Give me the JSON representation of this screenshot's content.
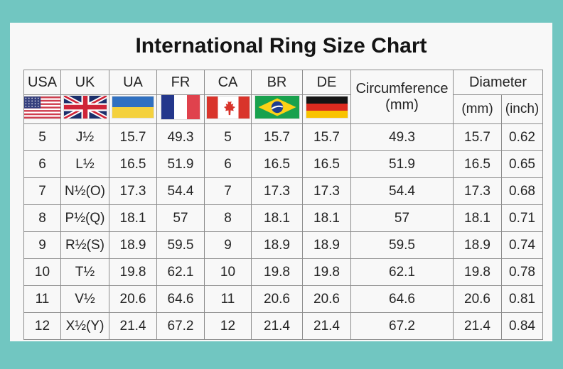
{
  "colors": {
    "background": "#71c6c1",
    "panel": "#f8f8f8",
    "grid": "#8c8c8c",
    "text": "#222222"
  },
  "header": {
    "countries": [
      "USA",
      "UK",
      "UA",
      "FR",
      "CA",
      "BR",
      "DE"
    ],
    "circumference_line1": "Circumference",
    "circumference_line2": "(mm)",
    "diameter": "Diameter",
    "diameter_mm": "(mm)",
    "diameter_inch": "(inch)"
  },
  "flags": [
    {
      "icon": "usa-flag-icon",
      "country": "USA"
    },
    {
      "icon": "uk-flag-icon",
      "country": "UK"
    },
    {
      "icon": "ukraine-flag-icon",
      "country": "UA"
    },
    {
      "icon": "france-flag-icon",
      "country": "FR"
    },
    {
      "icon": "canada-flag-icon",
      "country": "CA"
    },
    {
      "icon": "brazil-flag-icon",
      "country": "BR"
    },
    {
      "icon": "germany-flag-icon",
      "country": "DE"
    }
  ],
  "chart_data": {
    "type": "table",
    "title": "International Ring Size Chart",
    "columns": [
      "USA",
      "UK",
      "UA",
      "FR",
      "CA",
      "BR",
      "DE",
      "Circumference (mm)",
      "Diameter (mm)",
      "Diameter (inch)"
    ],
    "rows": [
      [
        "5",
        "J½",
        "15.7",
        "49.3",
        "5",
        "15.7",
        "15.7",
        "49.3",
        "15.7",
        "0.62"
      ],
      [
        "6",
        "L½",
        "16.5",
        "51.9",
        "6",
        "16.5",
        "16.5",
        "51.9",
        "16.5",
        "0.65"
      ],
      [
        "7",
        "N½(O)",
        "17.3",
        "54.4",
        "7",
        "17.3",
        "17.3",
        "54.4",
        "17.3",
        "0.68"
      ],
      [
        "8",
        "P½(Q)",
        "18.1",
        "57",
        "8",
        "18.1",
        "18.1",
        "57",
        "18.1",
        "0.71"
      ],
      [
        "9",
        "R½(S)",
        "18.9",
        "59.5",
        "9",
        "18.9",
        "18.9",
        "59.5",
        "18.9",
        "0.74"
      ],
      [
        "10",
        "T½",
        "19.8",
        "62.1",
        "10",
        "19.8",
        "19.8",
        "62.1",
        "19.8",
        "0.78"
      ],
      [
        "11",
        "V½",
        "20.6",
        "64.6",
        "11",
        "20.6",
        "20.6",
        "64.6",
        "20.6",
        "0.81"
      ],
      [
        "12",
        "X½(Y)",
        "21.4",
        "67.2",
        "12",
        "21.4",
        "21.4",
        "67.2",
        "21.4",
        "0.84"
      ]
    ]
  }
}
